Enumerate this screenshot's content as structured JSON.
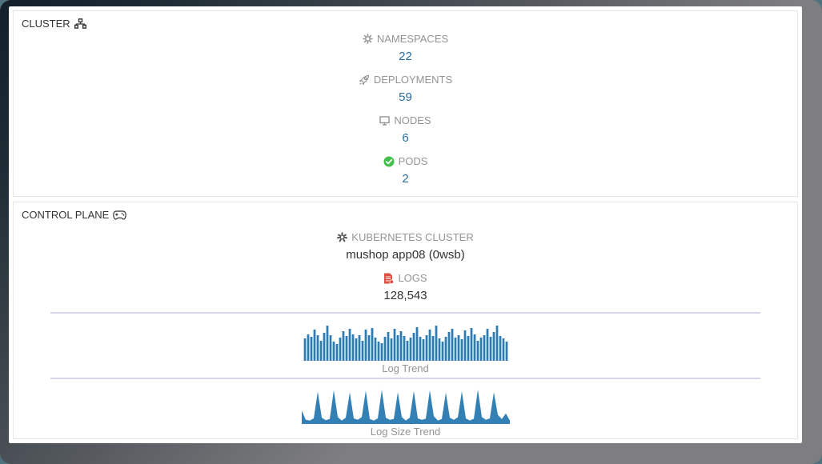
{
  "colors": {
    "value_link": "#2a6d9e",
    "label_gray": "#949494",
    "bar_blue": "#3578ab",
    "bar_edge_blue": "#a9cfe5",
    "area_blue": "#3380b4",
    "pods_green": "#43c04c",
    "logs_red": "#dd5145",
    "divider": "#d9d2e9"
  },
  "cluster_panel": {
    "title": "CLUSTER",
    "metrics": [
      {
        "label": "NAMESPACES",
        "value": "22",
        "icon": "gear-icon"
      },
      {
        "label": "DEPLOYMENTS",
        "value": "59",
        "icon": "rocket-icon"
      },
      {
        "label": "NODES",
        "value": "6",
        "icon": "display-icon"
      },
      {
        "label": "PODS",
        "value": "2",
        "icon": "check-circle-icon"
      }
    ]
  },
  "control_plane_panel": {
    "title": "CONTROL PLANE",
    "kubernetes_cluster": {
      "label": "KUBERNETES CLUSTER",
      "value": "mushop app08 (0wsb)"
    },
    "logs": {
      "label": "LOGS",
      "value": "128,543"
    }
  },
  "chart_data": [
    {
      "type": "bar",
      "title": "Log Trend",
      "ylabel": "relative log count (sparkline, unlabeled axes)",
      "ylim": [
        0,
        100
      ],
      "values": [
        60,
        72,
        65,
        85,
        70,
        55,
        75,
        95,
        70,
        52,
        45,
        62,
        80,
        68,
        88,
        72,
        60,
        70,
        55,
        85,
        70,
        90,
        62,
        52,
        48,
        65,
        78,
        60,
        88,
        70,
        80,
        68,
        55,
        62,
        75,
        92,
        65,
        58,
        70,
        85,
        68,
        95,
        60,
        52,
        65,
        78,
        88,
        62,
        70,
        58,
        82,
        68,
        90,
        72,
        55,
        62,
        70,
        88,
        65,
        78,
        95,
        68,
        60,
        52
      ]
    },
    {
      "type": "area",
      "title": "Log Size Trend",
      "ylabel": "relative log size (sparkline, unlabeled axes, ~12 periodic spikes)",
      "ylim": [
        0,
        100
      ],
      "values": [
        38,
        12,
        10,
        16,
        92,
        18,
        11,
        14,
        96,
        20,
        10,
        18,
        90,
        16,
        12,
        20,
        95,
        14,
        10,
        16,
        97,
        18,
        12,
        14,
        90,
        20,
        10,
        18,
        94,
        16,
        12,
        15,
        96,
        22,
        10,
        14,
        89,
        18,
        12,
        19,
        93,
        16,
        10,
        15,
        98,
        20,
        12,
        16,
        90,
        26,
        14,
        30,
        10
      ]
    }
  ]
}
